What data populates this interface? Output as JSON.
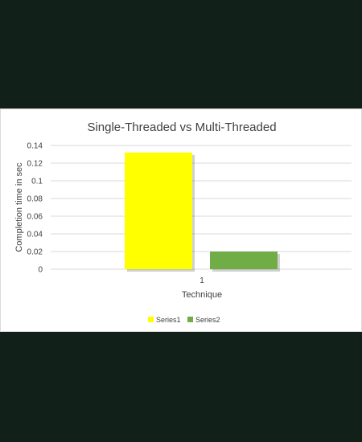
{
  "theme": {
    "page_background": "#12201a",
    "card_background": "#ffffff",
    "gridline_color": "#d9d9d9",
    "text_color": "#404040"
  },
  "chart_data": {
    "type": "bar",
    "title": "Single-Threaded vs Multi-Threaded",
    "xlabel": "Technique",
    "ylabel": "Completion time in sec",
    "categories": [
      "1"
    ],
    "series": [
      {
        "name": "Series1",
        "values": [
          0.132
        ],
        "color": "#ffff00"
      },
      {
        "name": "Series2",
        "values": [
          0.02
        ],
        "color": "#70ad47"
      }
    ],
    "ylim": [
      0,
      0.14
    ],
    "yticks": [
      0,
      0.02,
      0.04,
      0.06,
      0.08,
      0.1,
      0.12,
      0.14
    ],
    "ytick_labels": [
      "0",
      "0.02",
      "0.04",
      "0.06",
      "0.08",
      "0.1",
      "0.12",
      "0.14"
    ],
    "grid": true,
    "legend_position": "bottom"
  }
}
